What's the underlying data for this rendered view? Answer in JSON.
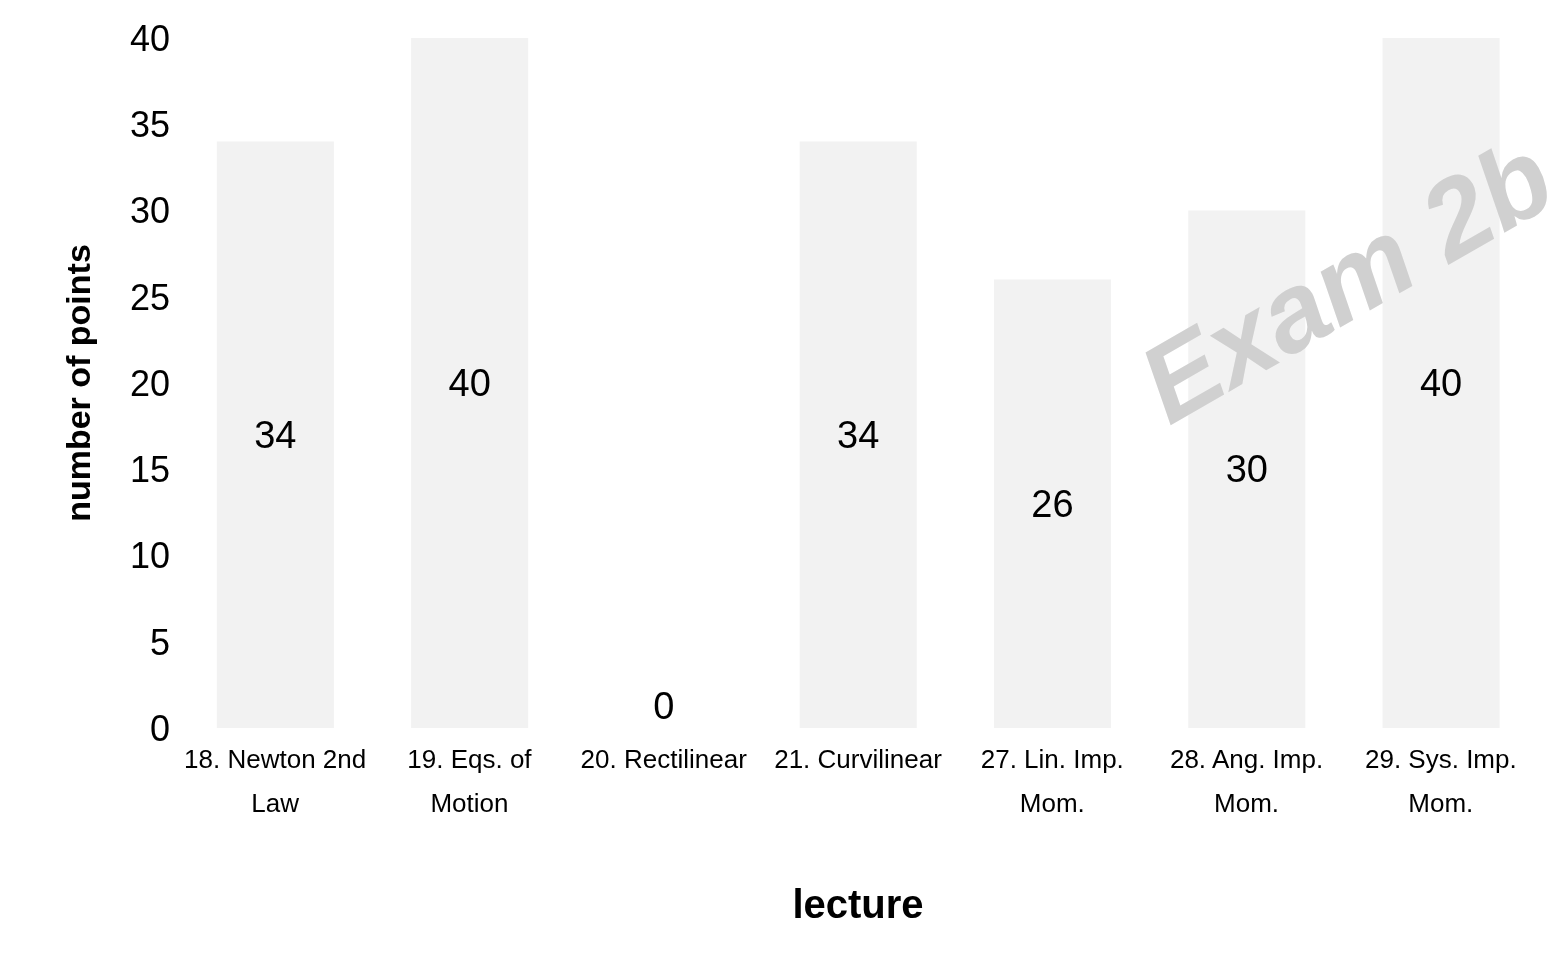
{
  "chart_data": {
    "type": "bar",
    "xlabel": "lecture",
    "ylabel": "number of points",
    "categories": [
      "18. Newton 2nd Law",
      "19. Eqs. of Motion",
      "20. Rectilinear",
      "21. Curvilinear",
      "27. Lin. Imp. Mom.",
      "28. Ang. Imp. Mom.",
      "29. Sys. Imp. Mom."
    ],
    "values": [
      34,
      40,
      0,
      34,
      26,
      30,
      40
    ],
    "color": "#f2f2f2",
    "ylim": [
      0,
      40
    ],
    "yticks": [
      0,
      5,
      10,
      15,
      20,
      25,
      30,
      35,
      40
    ],
    "grid": false,
    "data_labels": true,
    "annotations": [
      "Exam 2b"
    ]
  }
}
